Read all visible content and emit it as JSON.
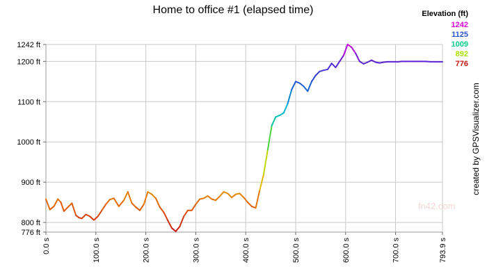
{
  "chart_data": {
    "type": "line",
    "title": "Home to office #1 (elapsed time)",
    "xlabel": "",
    "ylabel": "",
    "xlim": [
      0,
      793.9
    ],
    "ylim": [
      776,
      1242
    ],
    "x_ticks": [
      0,
      100,
      200,
      300,
      400,
      500,
      600,
      700,
      793.9
    ],
    "x_tick_labels": [
      "0.0 s",
      "100.0 s",
      "200.0 s",
      "300.0 s",
      "400.0 s",
      "500.0 s",
      "600.0 s",
      "700.0 s",
      "793.9 s"
    ],
    "y_ticks": [
      776,
      800,
      900,
      1000,
      1100,
      1200,
      1242
    ],
    "y_tick_labels": [
      "776 ft",
      "800 ft",
      "900 ft",
      "1000 ft",
      "1100 ft",
      "1200 ft",
      "1242 ft"
    ],
    "grid": true,
    "legend": {
      "placement": "top-right",
      "title": "Elevation (ft)",
      "entries": [
        {
          "label": "1242",
          "color": "#dd00dd"
        },
        {
          "label": "1125",
          "color": "#2255cc"
        },
        {
          "label": "1009",
          "color": "#00cc88"
        },
        {
          "label": "892",
          "color": "#aadd00"
        },
        {
          "label": "776",
          "color": "#cc1111"
        }
      ]
    },
    "series": [
      {
        "x": [
          0,
          8,
          16,
          24,
          30,
          36,
          44,
          52,
          60,
          66,
          72,
          80,
          88,
          96,
          104,
          112,
          120,
          128,
          136,
          146,
          156,
          164,
          172,
          180,
          188,
          196,
          204,
          212,
          220,
          228,
          236,
          244,
          252,
          260,
          268,
          276,
          284,
          292,
          300,
          308,
          316,
          324,
          332,
          340,
          348,
          356,
          364,
          372,
          380,
          388,
          396,
          404,
          412,
          420,
          428,
          436,
          444,
          452,
          460,
          468,
          476,
          484,
          492,
          500,
          508,
          516,
          524,
          532,
          540,
          548,
          556,
          564,
          572,
          580,
          588,
          596,
          604,
          612,
          620,
          628,
          636,
          644,
          652,
          660,
          668,
          676,
          684,
          692,
          700,
          706,
          712,
          720,
          728,
          736,
          744,
          752,
          760,
          770,
          780,
          793.9
        ],
        "y": [
          858,
          832,
          840,
          858,
          850,
          828,
          838,
          848,
          818,
          812,
          810,
          820,
          815,
          806,
          815,
          830,
          845,
          857,
          860,
          840,
          855,
          876,
          848,
          838,
          830,
          845,
          876,
          870,
          860,
          838,
          825,
          805,
          786,
          778,
          790,
          815,
          830,
          830,
          845,
          858,
          860,
          866,
          858,
          855,
          865,
          876,
          872,
          862,
          870,
          872,
          862,
          850,
          840,
          836,
          880,
          920,
          980,
          1040,
          1062,
          1066,
          1072,
          1095,
          1130,
          1150,
          1146,
          1138,
          1126,
          1150,
          1165,
          1175,
          1178,
          1180,
          1195,
          1185,
          1200,
          1215,
          1242,
          1235,
          1220,
          1200,
          1194,
          1198,
          1203,
          1198,
          1196,
          1198,
          1199,
          1199,
          1199,
          1199,
          1200,
          1200,
          1200,
          1200,
          1200,
          1200,
          1200,
          1199,
          1199,
          1199
        ]
      }
    ]
  },
  "watermark": "fn42.com",
  "credit": "created by GPSVisualizer.com"
}
